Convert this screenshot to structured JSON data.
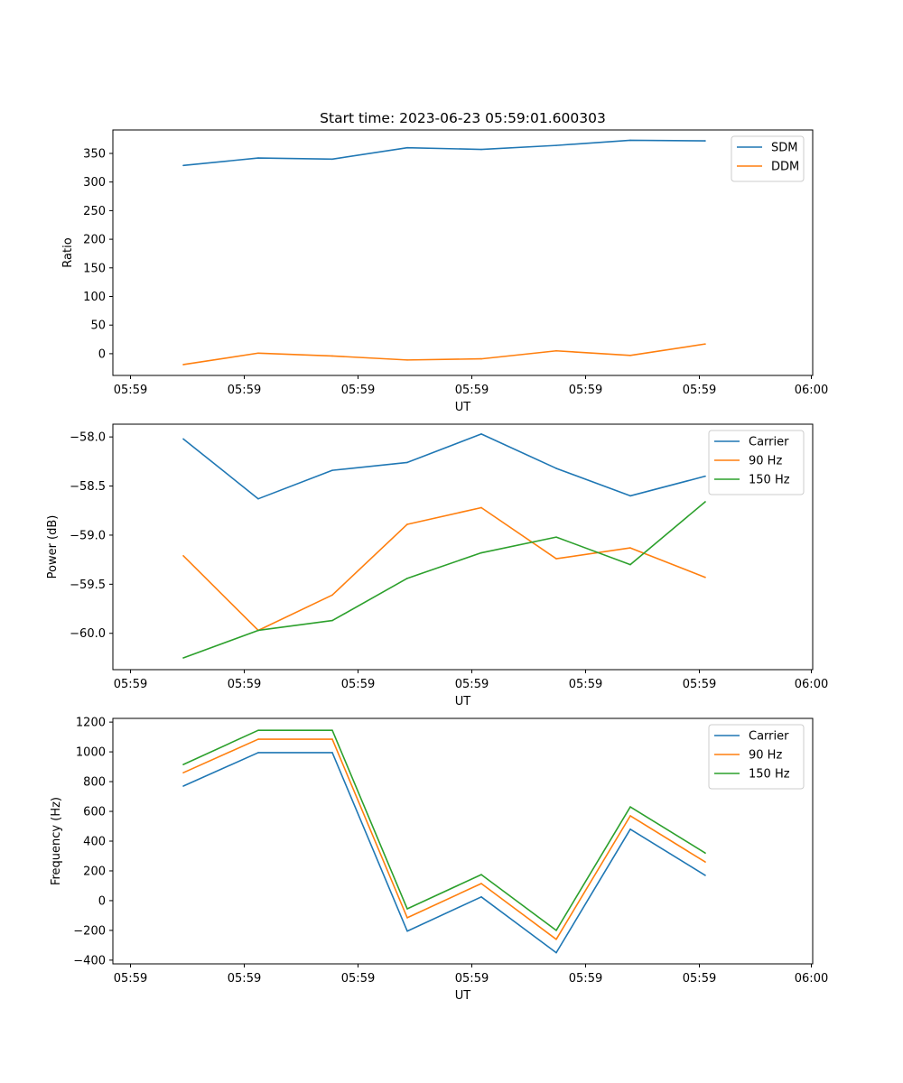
{
  "title": "Start time: 2023-06-23 05:59:01.600303",
  "colors": {
    "series1": "#1f77b4",
    "series2": "#ff7f0e",
    "series3": "#2ca02c"
  },
  "chart_data": [
    {
      "type": "line",
      "title": "Start time: 2023-06-23 05:59:01.600303",
      "xlabel": "UT",
      "ylabel": "Ratio",
      "xticks": [
        "05:59",
        "05:59",
        "05:59",
        "05:59",
        "05:59",
        "05:59",
        "06:00"
      ],
      "yticks": [
        "0",
        "50",
        "100",
        "150",
        "200",
        "250",
        "300",
        "350"
      ],
      "ylim": [
        -38,
        391
      ],
      "legend": "top-right",
      "grid": false,
      "series": [
        {
          "name": "SDM",
          "values": [
            329,
            342,
            340,
            360,
            357,
            364,
            373,
            372
          ]
        },
        {
          "name": "DDM",
          "values": [
            -19,
            1,
            -4,
            -11,
            -9,
            5,
            -3,
            17
          ]
        }
      ]
    },
    {
      "type": "line",
      "xlabel": "UT",
      "ylabel": "Power (dB)",
      "xticks": [
        "05:59",
        "05:59",
        "05:59",
        "05:59",
        "05:59",
        "05:59",
        "06:00"
      ],
      "yticks": [
        "−60.0",
        "−59.5",
        "−59.0",
        "−58.5",
        "−58.0"
      ],
      "ylim": [
        -60.37,
        -57.87
      ],
      "legend": "top-right",
      "grid": false,
      "series": [
        {
          "name": "Carrier",
          "values": [
            -58.02,
            -58.63,
            -58.34,
            -58.26,
            -57.97,
            -58.32,
            -58.6,
            -58.4
          ]
        },
        {
          "name": "90 Hz",
          "values": [
            -59.21,
            -59.97,
            -59.61,
            -58.89,
            -58.72,
            -59.24,
            -59.13,
            -59.43
          ]
        },
        {
          "name": "150 Hz",
          "values": [
            -60.25,
            -59.97,
            -59.87,
            -59.44,
            -59.18,
            -59.02,
            -59.3,
            -58.66
          ]
        }
      ]
    },
    {
      "type": "line",
      "xlabel": "UT",
      "ylabel": "Frequency (Hz)",
      "xticks": [
        "05:59",
        "05:59",
        "05:59",
        "05:59",
        "05:59",
        "05:59",
        "06:00"
      ],
      "yticks": [
        "−400",
        "−200",
        "0",
        "200",
        "400",
        "600",
        "800",
        "1000",
        "1200"
      ],
      "ylim": [
        -425,
        1225
      ],
      "legend": "top-right",
      "grid": false,
      "series": [
        {
          "name": "Carrier",
          "values": [
            770,
            995,
            995,
            -205,
            25,
            -350,
            480,
            170
          ]
        },
        {
          "name": "90 Hz",
          "values": [
            860,
            1085,
            1085,
            -115,
            115,
            -260,
            570,
            260
          ]
        },
        {
          "name": "150 Hz",
          "values": [
            915,
            1145,
            1145,
            -55,
            175,
            -200,
            630,
            320
          ]
        }
      ]
    }
  ]
}
